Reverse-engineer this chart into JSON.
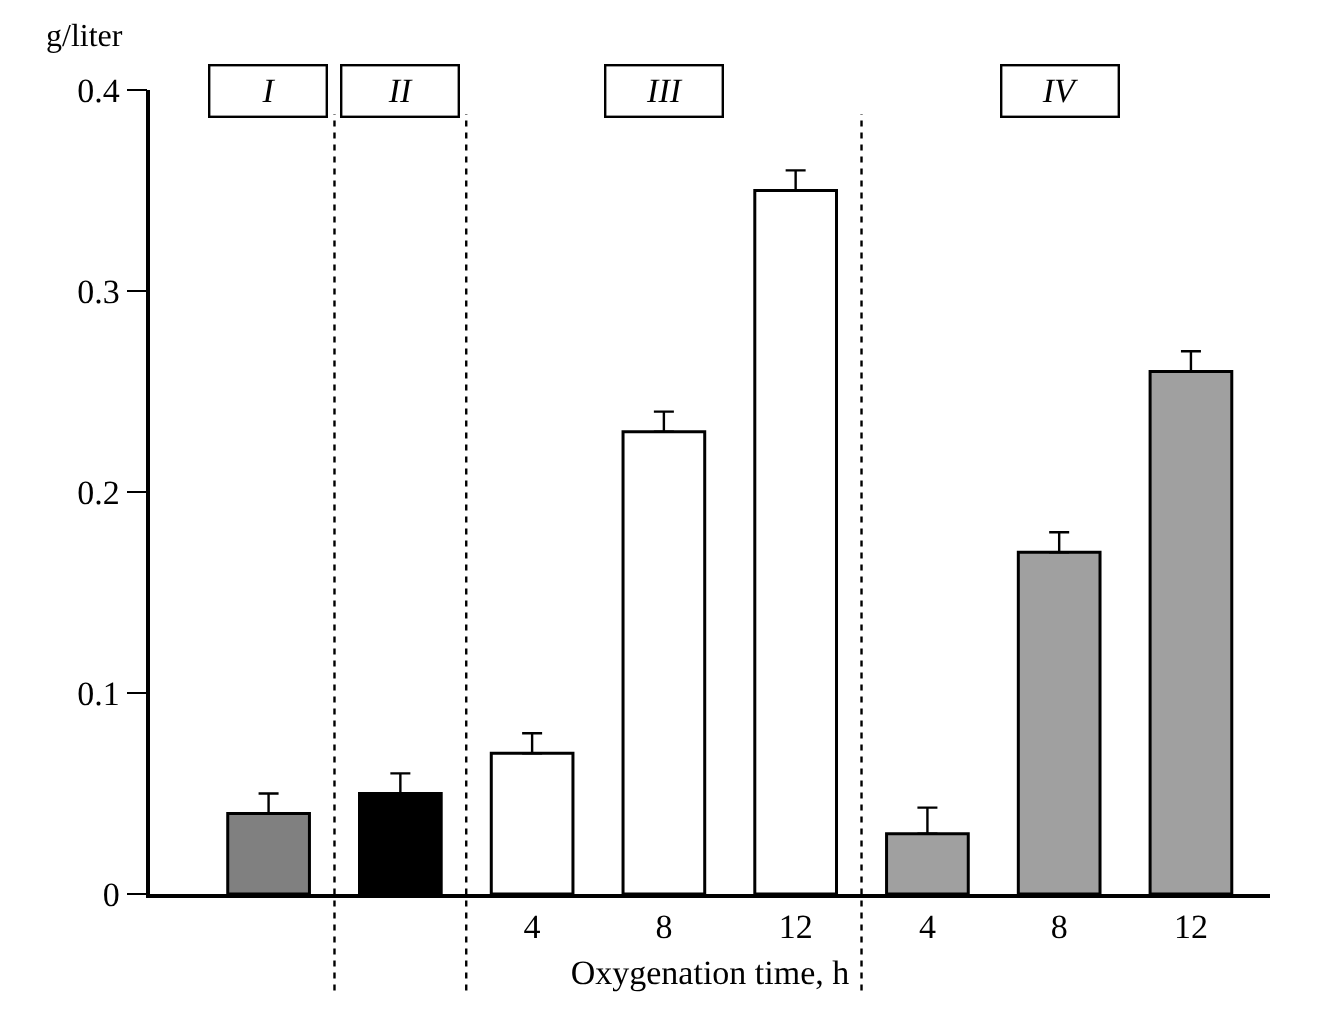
{
  "chart_data": {
    "type": "bar",
    "categories": [
      null,
      null,
      "4",
      "8",
      "12",
      "4",
      "8",
      "12"
    ],
    "values": [
      0.04,
      0.05,
      0.07,
      0.23,
      0.35,
      0.03,
      0.17,
      0.26
    ],
    "errors": [
      0.01,
      0.01,
      0.01,
      0.01,
      0.01,
      0.013,
      0.01,
      0.01
    ],
    "colors": [
      "#808080",
      "#000000",
      "#ffffff",
      "#ffffff",
      "#ffffff",
      "#a0a0a0",
      "#a0a0a0",
      "#a0a0a0"
    ],
    "xlabel": "Oxygenation time, h",
    "ylabel": "g/liter",
    "ylim": [
      0,
      0.4
    ],
    "yticks": [
      0,
      0.1,
      0.2,
      0.3,
      0.4
    ],
    "annotations": [
      "I",
      "II",
      "III",
      "IV"
    ]
  }
}
